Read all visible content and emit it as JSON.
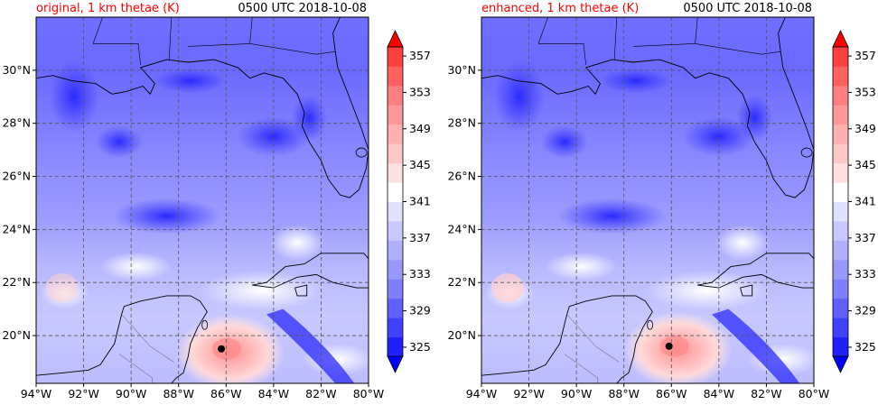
{
  "panels": [
    {
      "id": "original",
      "title_left": "original, 1 km thetae (K)",
      "title_right": "0500 UTC 2018-10-08",
      "hurricane_center": {
        "lon": -86.2,
        "lat": 19.5
      }
    },
    {
      "id": "enhanced",
      "title_left": "enhanced, 1 km thetae (K)",
      "title_right": "0500 UTC 2018-10-08",
      "hurricane_center": {
        "lon": -86.1,
        "lat": 19.6
      }
    }
  ],
  "map": {
    "lon_range": [
      -94,
      -80
    ],
    "lat_range": [
      18.2,
      32
    ],
    "lon_ticks": [
      "94°W",
      "92°W",
      "90°W",
      "88°W",
      "86°W",
      "84°W",
      "82°W",
      "80°W"
    ],
    "lat_ticks": [
      "20°N",
      "22°N",
      "24°N",
      "26°N",
      "28°N",
      "30°N"
    ],
    "gridlines": "dashed"
  },
  "colorbar": {
    "labels": [
      "325",
      "329",
      "333",
      "337",
      "341",
      "345",
      "349",
      "353",
      "357"
    ],
    "min": 325,
    "max": 359,
    "step": 2,
    "extend": "both",
    "colors": [
      "#0000ff",
      "#2020ff",
      "#4040ff",
      "#6060ff",
      "#8080ff",
      "#9898ff",
      "#b0b0ff",
      "#c8c8ff",
      "#e0e0ff",
      "#ffffff",
      "#ffe0e0",
      "#ffc8c8",
      "#ffb0b0",
      "#ff9898",
      "#ff8080",
      "#ff6060",
      "#ff4040",
      "#ff0000"
    ]
  },
  "colors": {
    "title_left": "#ff0000",
    "land_blue": "#7a7aff",
    "coast": "#000000"
  }
}
